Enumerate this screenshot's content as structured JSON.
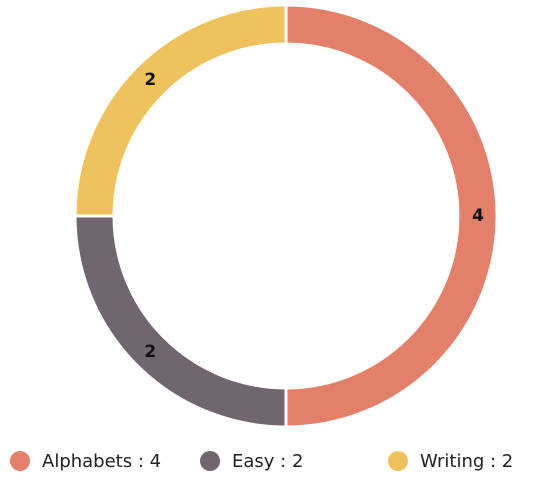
{
  "chart_data": {
    "type": "donut",
    "categories": [
      "Alphabets",
      "Easy",
      "Writing"
    ],
    "values": [
      4,
      2,
      2
    ],
    "colors": [
      "#e2806a",
      "#716570",
      "#eec35e"
    ],
    "legend": [
      "Alphabets : 4",
      "Easy : 2",
      "Writing : 2"
    ],
    "legend_position": "bottom"
  }
}
